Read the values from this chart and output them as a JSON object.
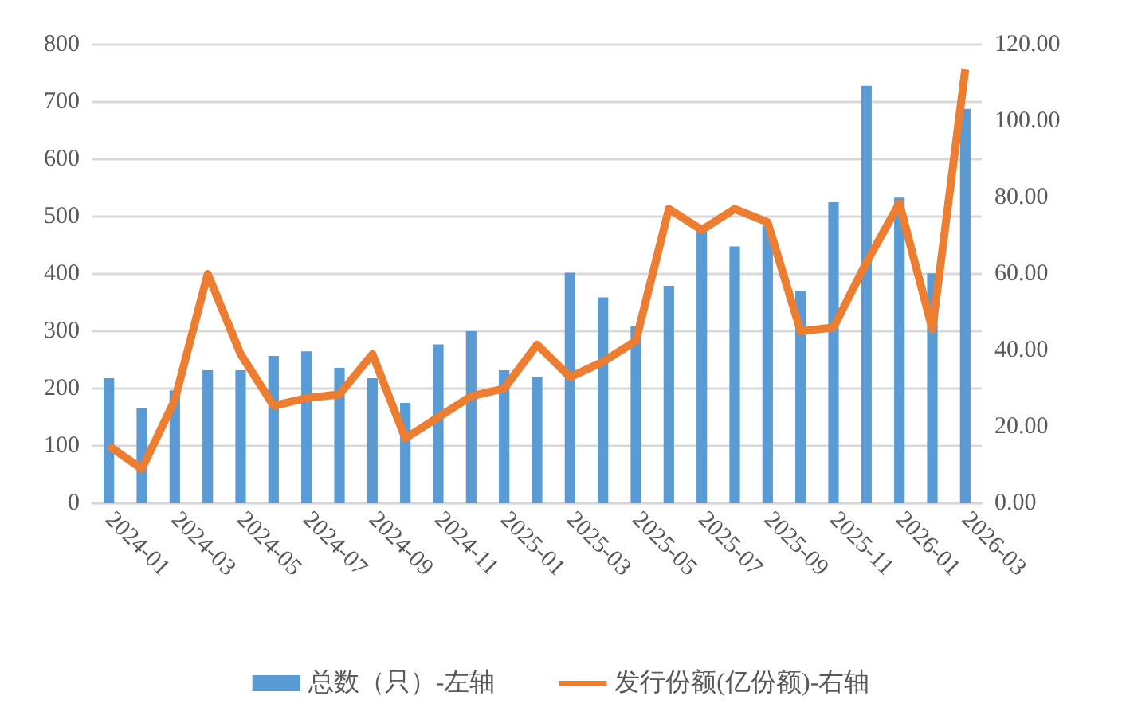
{
  "chart_data": {
    "type": "bar",
    "categories": [
      "2024-01",
      null,
      "2024-03",
      null,
      "2024-05",
      null,
      "2024-07",
      null,
      "2024-09",
      null,
      "2024-11",
      null,
      "2025-01",
      null,
      "2025-03",
      null,
      "2025-05",
      null,
      "2025-07",
      null,
      "2025-09",
      null,
      "2025-11",
      null,
      "2026-01",
      null,
      "2026-03"
    ],
    "series": [
      {
        "name": "总数（只）-左轴",
        "color": "#5b9bd5",
        "values": [
          218,
          166,
          197,
          232,
          232,
          257,
          265,
          236,
          218,
          175,
          277,
          300,
          232,
          221,
          402,
          359,
          309,
          379,
          478,
          448,
          484,
          371,
          525,
          728,
          533,
          401,
          688
        ]
      },
      {
        "name": "发行份额(亿份额)-右轴",
        "type": "line",
        "axis": "y2",
        "color": "#ed7d31",
        "values": [
          15,
          9,
          27,
          60,
          39,
          25.5,
          27.5,
          28.5,
          39,
          17,
          22.5,
          28,
          30,
          41.5,
          33,
          37,
          42.5,
          77,
          71.5,
          77,
          73.5,
          45,
          46,
          63,
          78.5,
          45.5,
          113.5
        ]
      }
    ],
    "ylim": [
      0,
      800
    ],
    "yticks": [
      0,
      100,
      200,
      300,
      400,
      500,
      600,
      700,
      800
    ],
    "y2lim": [
      0,
      120
    ],
    "y2ticks": [
      {
        "value": 0,
        "label": "0.00"
      },
      {
        "value": 20,
        "label": "20.00"
      },
      {
        "value": 40,
        "label": "40.00"
      },
      {
        "value": 60,
        "label": "60.00"
      },
      {
        "value": 80,
        "label": "80.00"
      },
      {
        "value": 100,
        "label": "100.00"
      },
      {
        "value": 120,
        "label": "120.00"
      }
    ],
    "grid": "y",
    "legend": "bottom",
    "marker": "none"
  }
}
